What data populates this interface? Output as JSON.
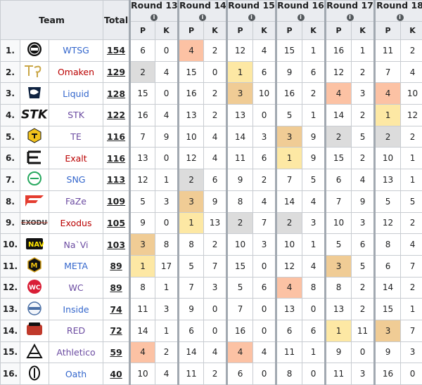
{
  "header": {
    "team_label": "Team",
    "total_label": "Total",
    "rounds": [
      "Round 13",
      "Round 14",
      "Round 15",
      "Round 16",
      "Round 17",
      "Round 18"
    ],
    "info_glyph": "i",
    "p_label": "P",
    "k_label": "K"
  },
  "colors": {
    "gold": "#fde8a4",
    "silver": "#dcdcdc",
    "bronze": "#f0cc95",
    "peach": "#fcc2a4"
  },
  "teams": [
    {
      "rank": "1.",
      "name": "WTSG",
      "color": "#3366cc",
      "logo": "wtsg-logo-icon",
      "total": "154",
      "cells": [
        [
          "6",
          ""
        ],
        [
          "0",
          ""
        ],
        [
          "4",
          "peach"
        ],
        [
          "2",
          ""
        ],
        [
          "12",
          ""
        ],
        [
          "4",
          ""
        ],
        [
          "15",
          ""
        ],
        [
          "1",
          ""
        ],
        [
          "16",
          ""
        ],
        [
          "1",
          ""
        ],
        [
          "11",
          ""
        ],
        [
          "2",
          ""
        ]
      ]
    },
    {
      "rank": "2.",
      "name": "Omaken",
      "color": "#ba0000",
      "logo": "omaken-logo-icon",
      "total": "129",
      "cells": [
        [
          "2",
          "silver"
        ],
        [
          "4",
          ""
        ],
        [
          "15",
          ""
        ],
        [
          "0",
          ""
        ],
        [
          "1",
          "gold"
        ],
        [
          "6",
          ""
        ],
        [
          "9",
          ""
        ],
        [
          "6",
          ""
        ],
        [
          "12",
          ""
        ],
        [
          "2",
          ""
        ],
        [
          "7",
          ""
        ],
        [
          "4",
          ""
        ]
      ]
    },
    {
      "rank": "3.",
      "name": "Liquid",
      "color": "#3366cc",
      "logo": "liquid-logo-icon",
      "total": "128",
      "cells": [
        [
          "15",
          ""
        ],
        [
          "0",
          ""
        ],
        [
          "16",
          ""
        ],
        [
          "2",
          ""
        ],
        [
          "3",
          "bronze"
        ],
        [
          "10",
          ""
        ],
        [
          "16",
          ""
        ],
        [
          "2",
          ""
        ],
        [
          "4",
          "peach"
        ],
        [
          "3",
          ""
        ],
        [
          "4",
          "peach"
        ],
        [
          "10",
          ""
        ]
      ]
    },
    {
      "rank": "4.",
      "name": "STK",
      "color": "#6b4ba1",
      "logo": "stk-logo-icon",
      "total": "122",
      "cells": [
        [
          "16",
          ""
        ],
        [
          "4",
          ""
        ],
        [
          "13",
          ""
        ],
        [
          "2",
          ""
        ],
        [
          "13",
          ""
        ],
        [
          "0",
          ""
        ],
        [
          "5",
          ""
        ],
        [
          "1",
          ""
        ],
        [
          "14",
          ""
        ],
        [
          "2",
          ""
        ],
        [
          "1",
          "gold"
        ],
        [
          "12",
          ""
        ]
      ]
    },
    {
      "rank": "5.",
      "name": "TE",
      "color": "#6b4ba1",
      "logo": "te-logo-icon",
      "total": "116",
      "cells": [
        [
          "7",
          ""
        ],
        [
          "9",
          ""
        ],
        [
          "10",
          ""
        ],
        [
          "4",
          ""
        ],
        [
          "14",
          ""
        ],
        [
          "3",
          ""
        ],
        [
          "3",
          "bronze"
        ],
        [
          "9",
          ""
        ],
        [
          "2",
          "silver"
        ],
        [
          "5",
          ""
        ],
        [
          "2",
          "silver"
        ],
        [
          "2",
          ""
        ]
      ]
    },
    {
      "rank": "6.",
      "name": "Exalt",
      "color": "#ba0000",
      "logo": "exalt-logo-icon",
      "total": "116",
      "cells": [
        [
          "13",
          ""
        ],
        [
          "0",
          ""
        ],
        [
          "12",
          ""
        ],
        [
          "4",
          ""
        ],
        [
          "11",
          ""
        ],
        [
          "6",
          ""
        ],
        [
          "1",
          "gold"
        ],
        [
          "9",
          ""
        ],
        [
          "15",
          ""
        ],
        [
          "2",
          ""
        ],
        [
          "10",
          ""
        ],
        [
          "1",
          ""
        ]
      ]
    },
    {
      "rank": "7.",
      "name": "SNG",
      "color": "#3366cc",
      "logo": "sng-logo-icon",
      "total": "113",
      "cells": [
        [
          "12",
          ""
        ],
        [
          "1",
          ""
        ],
        [
          "2",
          "silver"
        ],
        [
          "6",
          ""
        ],
        [
          "9",
          ""
        ],
        [
          "2",
          ""
        ],
        [
          "7",
          ""
        ],
        [
          "5",
          ""
        ],
        [
          "6",
          ""
        ],
        [
          "4",
          ""
        ],
        [
          "13",
          ""
        ],
        [
          "1",
          ""
        ]
      ]
    },
    {
      "rank": "8.",
      "name": "FaZe",
      "color": "#6b4ba1",
      "logo": "faze-logo-icon",
      "total": "109",
      "cells": [
        [
          "5",
          ""
        ],
        [
          "3",
          ""
        ],
        [
          "3",
          "bronze"
        ],
        [
          "9",
          ""
        ],
        [
          "8",
          ""
        ],
        [
          "4",
          ""
        ],
        [
          "14",
          ""
        ],
        [
          "4",
          ""
        ],
        [
          "7",
          ""
        ],
        [
          "9",
          ""
        ],
        [
          "5",
          ""
        ],
        [
          "5",
          ""
        ]
      ]
    },
    {
      "rank": "9.",
      "name": "Exodus",
      "color": "#ba0000",
      "logo": "exodus-logo-icon",
      "total": "105",
      "cells": [
        [
          "9",
          ""
        ],
        [
          "0",
          ""
        ],
        [
          "1",
          "gold"
        ],
        [
          "13",
          ""
        ],
        [
          "2",
          "silver"
        ],
        [
          "7",
          ""
        ],
        [
          "2",
          "silver"
        ],
        [
          "3",
          ""
        ],
        [
          "10",
          ""
        ],
        [
          "3",
          ""
        ],
        [
          "12",
          ""
        ],
        [
          "2",
          ""
        ]
      ]
    },
    {
      "rank": "10.",
      "name": "Na`Vi",
      "color": "#6b4ba1",
      "logo": "navi-logo-icon",
      "total": "103",
      "cells": [
        [
          "3",
          "bronze"
        ],
        [
          "8",
          ""
        ],
        [
          "8",
          ""
        ],
        [
          "2",
          ""
        ],
        [
          "10",
          ""
        ],
        [
          "3",
          ""
        ],
        [
          "10",
          ""
        ],
        [
          "1",
          ""
        ],
        [
          "5",
          ""
        ],
        [
          "6",
          ""
        ],
        [
          "8",
          ""
        ],
        [
          "4",
          ""
        ]
      ]
    },
    {
      "rank": "11.",
      "name": "META",
      "color": "#3366cc",
      "logo": "meta-logo-icon",
      "total": "89",
      "cells": [
        [
          "1",
          "gold"
        ],
        [
          "17",
          ""
        ],
        [
          "5",
          ""
        ],
        [
          "7",
          ""
        ],
        [
          "15",
          ""
        ],
        [
          "0",
          ""
        ],
        [
          "12",
          ""
        ],
        [
          "4",
          ""
        ],
        [
          "3",
          "bronze"
        ],
        [
          "5",
          ""
        ],
        [
          "6",
          ""
        ],
        [
          "7",
          ""
        ]
      ]
    },
    {
      "rank": "12.",
      "name": "WC",
      "color": "#6b4ba1",
      "logo": "wc-logo-icon",
      "total": "89",
      "cells": [
        [
          "8",
          ""
        ],
        [
          "1",
          ""
        ],
        [
          "7",
          ""
        ],
        [
          "3",
          ""
        ],
        [
          "5",
          ""
        ],
        [
          "6",
          ""
        ],
        [
          "4",
          "peach"
        ],
        [
          "8",
          ""
        ],
        [
          "8",
          ""
        ],
        [
          "2",
          ""
        ],
        [
          "14",
          ""
        ],
        [
          "2",
          ""
        ]
      ]
    },
    {
      "rank": "13.",
      "name": "Inside",
      "color": "#3366cc",
      "logo": "inside-logo-icon",
      "total": "74",
      "cells": [
        [
          "11",
          ""
        ],
        [
          "3",
          ""
        ],
        [
          "9",
          ""
        ],
        [
          "0",
          ""
        ],
        [
          "7",
          ""
        ],
        [
          "0",
          ""
        ],
        [
          "13",
          ""
        ],
        [
          "0",
          ""
        ],
        [
          "13",
          ""
        ],
        [
          "2",
          ""
        ],
        [
          "15",
          ""
        ],
        [
          "1",
          ""
        ]
      ]
    },
    {
      "rank": "14.",
      "name": "RED",
      "color": "#6b4ba1",
      "logo": "red-logo-icon",
      "total": "72",
      "cells": [
        [
          "14",
          ""
        ],
        [
          "1",
          ""
        ],
        [
          "6",
          ""
        ],
        [
          "0",
          ""
        ],
        [
          "16",
          ""
        ],
        [
          "0",
          ""
        ],
        [
          "6",
          ""
        ],
        [
          "6",
          ""
        ],
        [
          "1",
          "gold"
        ],
        [
          "11",
          ""
        ],
        [
          "3",
          "bronze"
        ],
        [
          "7",
          ""
        ]
      ]
    },
    {
      "rank": "15.",
      "name": "Athletico",
      "color": "#6b4ba1",
      "logo": "athletico-logo-icon",
      "total": "59",
      "cells": [
        [
          "4",
          "peach"
        ],
        [
          "2",
          ""
        ],
        [
          "14",
          ""
        ],
        [
          "4",
          ""
        ],
        [
          "4",
          "peach"
        ],
        [
          "4",
          ""
        ],
        [
          "11",
          ""
        ],
        [
          "1",
          ""
        ],
        [
          "9",
          ""
        ],
        [
          "0",
          ""
        ],
        [
          "9",
          ""
        ],
        [
          "3",
          ""
        ]
      ]
    },
    {
      "rank": "16.",
      "name": "Oath",
      "color": "#3366cc",
      "logo": "oath-logo-icon",
      "total": "40",
      "cells": [
        [
          "10",
          ""
        ],
        [
          "4",
          ""
        ],
        [
          "11",
          ""
        ],
        [
          "2",
          ""
        ],
        [
          "6",
          ""
        ],
        [
          "0",
          ""
        ],
        [
          "8",
          ""
        ],
        [
          "0",
          ""
        ],
        [
          "11",
          ""
        ],
        [
          "3",
          ""
        ],
        [
          "16",
          ""
        ],
        [
          "0",
          ""
        ]
      ]
    }
  ]
}
